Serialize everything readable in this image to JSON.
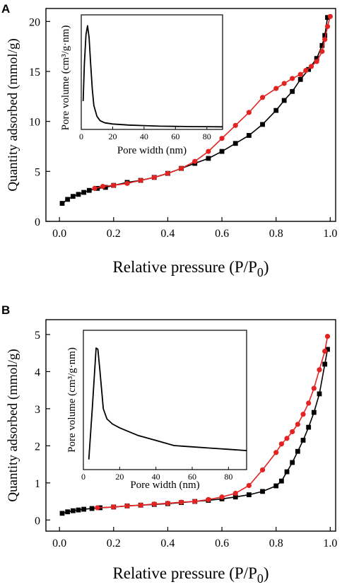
{
  "chart_data": [
    {
      "panel": "A",
      "type": "line",
      "xlabel": "Relative pressure (P/P0)",
      "ylabel": "Quantity adsorbed (mmol/g)",
      "xlim": [
        -0.05,
        1.02
      ],
      "ylim": [
        0,
        21.3
      ],
      "xticks": [
        0.0,
        0.2,
        0.4,
        0.6,
        0.8,
        1.0
      ],
      "xtick_labels": [
        "0.0",
        "0.2",
        "0.4",
        "0.6",
        "0.8",
        "1.0"
      ],
      "yticks": [
        0,
        5,
        10,
        15,
        20
      ],
      "ytick_labels": [
        "0",
        "5",
        "10",
        "15",
        "20"
      ],
      "series": [
        {
          "color": "#000000",
          "marker": "square",
          "x": [
            0.01,
            0.03,
            0.05,
            0.07,
            0.09,
            0.11,
            0.14,
            0.17,
            0.2,
            0.25,
            0.3,
            0.35,
            0.4,
            0.45,
            0.5,
            0.55,
            0.6,
            0.65,
            0.7,
            0.75,
            0.8,
            0.83,
            0.86,
            0.89,
            0.92,
            0.95,
            0.97,
            0.98,
            0.99
          ],
          "y": [
            1.8,
            2.2,
            2.5,
            2.7,
            2.9,
            3.1,
            3.3,
            3.4,
            3.6,
            3.9,
            4.1,
            4.4,
            4.8,
            5.3,
            5.8,
            6.3,
            7.0,
            7.8,
            8.6,
            9.7,
            11.1,
            12.1,
            13.0,
            14.2,
            15.2,
            16.3,
            17.6,
            18.6,
            20.4
          ]
        },
        {
          "color": "#e32222",
          "marker": "circle",
          "x": [
            0.13,
            0.16,
            0.2,
            0.25,
            0.3,
            0.35,
            0.4,
            0.45,
            0.5,
            0.55,
            0.6,
            0.65,
            0.7,
            0.75,
            0.8,
            0.83,
            0.86,
            0.89,
            0.91,
            0.93,
            0.95,
            0.97,
            0.98,
            0.99,
            1.0
          ],
          "y": [
            3.3,
            3.5,
            3.6,
            3.8,
            4.1,
            4.4,
            4.8,
            5.3,
            6.0,
            7.0,
            8.3,
            9.6,
            10.9,
            12.4,
            13.3,
            13.8,
            14.3,
            14.7,
            15.1,
            15.5,
            16.0,
            17.0,
            18.2,
            19.5,
            20.5
          ]
        }
      ],
      "inset": {
        "type": "line",
        "xlabel": "Pore width (nm)",
        "ylabel_main": "Pore volume",
        "ylabel_unit": "(cm³/g·nm)",
        "xlim": [
          0,
          90
        ],
        "ylim": [
          0,
          1.05
        ],
        "xticks": [
          0,
          20,
          40,
          60,
          80
        ],
        "xtick_labels": [
          "0",
          "20",
          "40",
          "60",
          "80"
        ],
        "x": [
          1.2,
          2,
          3,
          4,
          5,
          6,
          7,
          8,
          10,
          12,
          15,
          20,
          30,
          40,
          50,
          60,
          70,
          80,
          90
        ],
        "y": [
          0.26,
          0.6,
          0.87,
          0.95,
          0.84,
          0.6,
          0.37,
          0.22,
          0.12,
          0.08,
          0.06,
          0.05,
          0.04,
          0.035,
          0.03,
          0.028,
          0.026,
          0.025,
          0.024
        ]
      }
    },
    {
      "panel": "B",
      "type": "line",
      "xlabel": "Relative pressure (P/P0)",
      "ylabel": "Quantity adsorbed (mmol/g)",
      "xlim": [
        -0.05,
        1.02
      ],
      "ylim": [
        -0.3,
        5.4
      ],
      "xticks": [
        0.0,
        0.2,
        0.4,
        0.6,
        0.8,
        1.0
      ],
      "xtick_labels": [
        "0.0",
        "0.2",
        "0.4",
        "0.6",
        "0.8",
        "1.0"
      ],
      "yticks": [
        0,
        1,
        2,
        3,
        4,
        5
      ],
      "ytick_labels": [
        "0",
        "1",
        "2",
        "3",
        "4",
        "5"
      ],
      "series": [
        {
          "color": "#000000",
          "marker": "square",
          "x": [
            0.01,
            0.03,
            0.05,
            0.07,
            0.09,
            0.12,
            0.15,
            0.2,
            0.25,
            0.3,
            0.35,
            0.4,
            0.45,
            0.5,
            0.55,
            0.6,
            0.65,
            0.7,
            0.75,
            0.8,
            0.82,
            0.84,
            0.86,
            0.88,
            0.9,
            0.92,
            0.94,
            0.96,
            0.98,
            0.99
          ],
          "y": [
            0.18,
            0.22,
            0.25,
            0.27,
            0.29,
            0.31,
            0.33,
            0.35,
            0.38,
            0.4,
            0.42,
            0.44,
            0.47,
            0.5,
            0.53,
            0.57,
            0.62,
            0.68,
            0.77,
            0.92,
            1.05,
            1.3,
            1.55,
            1.85,
            2.15,
            2.5,
            2.9,
            3.4,
            4.2,
            4.6
          ]
        },
        {
          "color": "#e32222",
          "marker": "circle",
          "x": [
            0.14,
            0.2,
            0.25,
            0.3,
            0.35,
            0.4,
            0.45,
            0.5,
            0.55,
            0.6,
            0.65,
            0.7,
            0.75,
            0.8,
            0.82,
            0.84,
            0.86,
            0.88,
            0.9,
            0.92,
            0.94,
            0.96,
            0.98,
            0.99
          ],
          "y": [
            0.33,
            0.35,
            0.38,
            0.4,
            0.43,
            0.45,
            0.48,
            0.5,
            0.55,
            0.62,
            0.72,
            0.93,
            1.35,
            1.82,
            2.05,
            2.2,
            2.38,
            2.58,
            2.85,
            3.15,
            3.55,
            4.05,
            4.55,
            4.95
          ]
        }
      ],
      "inset": {
        "type": "line",
        "xlabel": "Pore width (nm)",
        "ylabel_main": "Pore volume",
        "ylabel_unit": "(cm³/g·nm)",
        "xlim": [
          0,
          90
        ],
        "ylim": [
          0,
          1.1
        ],
        "xticks": [
          0,
          20,
          40,
          60,
          80
        ],
        "xtick_labels": [
          "0",
          "20",
          "40",
          "60",
          "80"
        ],
        "x": [
          3,
          5,
          7,
          8,
          9,
          11,
          13,
          16,
          20,
          25,
          30,
          40,
          50,
          60,
          70,
          80,
          90
        ],
        "y": [
          0.08,
          0.5,
          0.96,
          0.95,
          0.8,
          0.48,
          0.4,
          0.36,
          0.33,
          0.3,
          0.27,
          0.23,
          0.19,
          0.18,
          0.17,
          0.16,
          0.15
        ]
      }
    }
  ]
}
